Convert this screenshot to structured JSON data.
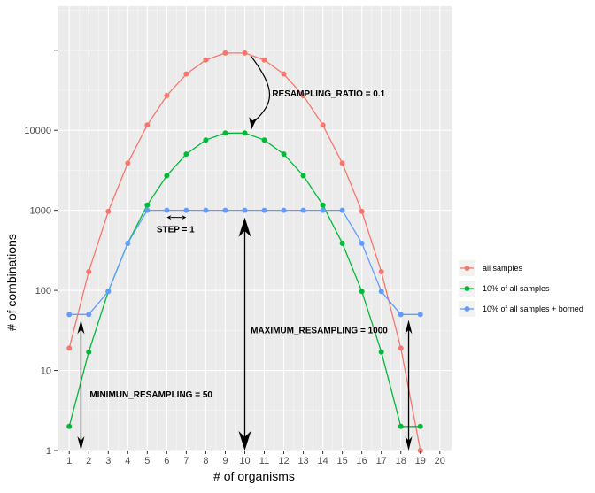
{
  "chart_data": {
    "type": "line",
    "xlabel": "# of organisms",
    "ylabel": "# of combinations",
    "x_ticks": [
      "1",
      "2",
      "3",
      "4",
      "5",
      "6",
      "7",
      "8",
      "9",
      "10",
      "11",
      "12",
      "13",
      "14",
      "15",
      "16",
      "17",
      "18",
      "19",
      "20"
    ],
    "y_scale": "log10",
    "y_ticks": [
      "1",
      "10",
      "100",
      "1000",
      "10000",
      ""
    ],
    "xlim": [
      0.4,
      20.6
    ],
    "ylim_log10": [
      0,
      5.55
    ],
    "grid": true,
    "legend_position": "right",
    "series": [
      {
        "name": "all samples",
        "color": "#F8766D",
        "x": [
          1,
          2,
          3,
          4,
          5,
          6,
          7,
          8,
          9,
          10,
          11,
          12,
          13,
          14,
          15,
          16,
          17,
          18,
          19
        ],
        "y": [
          19,
          171,
          969,
          3876,
          11628,
          27132,
          50388,
          75582,
          92378,
          92378,
          75582,
          50388,
          27132,
          11628,
          3876,
          969,
          171,
          19,
          1
        ]
      },
      {
        "name": "10% of all samples",
        "color": "#00BA38",
        "x": [
          1,
          2,
          3,
          4,
          5,
          6,
          7,
          8,
          9,
          10,
          11,
          12,
          13,
          14,
          15,
          16,
          17,
          18,
          19
        ],
        "y": [
          2,
          17,
          97,
          388,
          1163,
          2713,
          5039,
          7558,
          9238,
          9238,
          7558,
          5039,
          2713,
          1163,
          388,
          97,
          17,
          2,
          2
        ]
      },
      {
        "name": "10% of all samples + borned",
        "color": "#619CFF",
        "x": [
          1,
          2,
          3,
          4,
          5,
          6,
          7,
          8,
          9,
          10,
          11,
          12,
          13,
          14,
          15,
          16,
          17,
          18,
          19
        ],
        "y": [
          50,
          50,
          97,
          388,
          1000,
          1000,
          1000,
          1000,
          1000,
          1000,
          1000,
          1000,
          1000,
          1000,
          1000,
          388,
          97,
          50,
          50
        ]
      }
    ],
    "annotations": [
      {
        "text": "RESAMPLING_RATIO = 0.1"
      },
      {
        "text": "STEP = 1"
      },
      {
        "text": "MAXIMUM_RESAMPLING = 1000"
      },
      {
        "text": "MINIMUN_RESAMPLING = 50"
      }
    ]
  }
}
